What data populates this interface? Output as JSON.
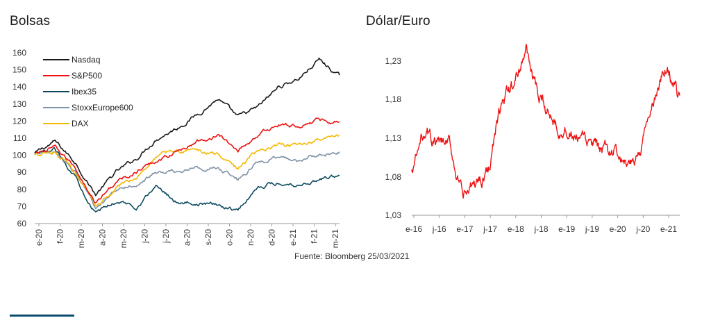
{
  "source": "Fuente: Bloomberg 25/03/2021",
  "chart_data": [
    {
      "type": "line",
      "title": "Bolsas",
      "ylim": [
        60,
        160
      ],
      "yticks": [
        "160",
        "150",
        "140",
        "130",
        "120",
        "110",
        "100",
        "90",
        "80",
        "70",
        "60"
      ],
      "xticks": [
        "e-20",
        "f-20",
        "m-20",
        "a-20",
        "m-20",
        "j-20",
        "j-20",
        "a-20",
        "s-20",
        "o-20",
        "n-20",
        "d-20",
        "e-21",
        "f-21",
        "m-21"
      ],
      "legend": [
        "Nasdaq",
        "S&P500",
        "Ibex35",
        "StoxxEurope600",
        "DAX"
      ],
      "legend_position": "top-left",
      "x": [
        "2020-01",
        "2020-02",
        "2020-03a",
        "2020-03b",
        "2020-04",
        "2020-05",
        "2020-06",
        "2020-07",
        "2020-08",
        "2020-09",
        "2020-10",
        "2020-11",
        "2020-12",
        "2021-01",
        "2021-02",
        "2021-03"
      ],
      "series": [
        {
          "name": "Nasdaq",
          "color": "#1a1a1a",
          "values": [
            101,
            108,
            96,
            77,
            90,
            98,
            110,
            116,
            124,
            133,
            122,
            128,
            140,
            145,
            156,
            146
          ]
        },
        {
          "name": "S&P500",
          "color": "#ee1111",
          "values": [
            101,
            104,
            93,
            72,
            84,
            90,
            97,
            102,
            108,
            112,
            103,
            112,
            118,
            117,
            121,
            120
          ]
        },
        {
          "name": "Ibex35",
          "color": "#0d4a5e",
          "values": [
            100,
            103,
            88,
            66,
            73,
            70,
            82,
            73,
            72,
            71,
            68,
            82,
            84,
            83,
            86,
            88
          ]
        },
        {
          "name": "StoxxEurope600",
          "color": "#7f92a5",
          "values": [
            100,
            103,
            90,
            68,
            80,
            84,
            90,
            90,
            93,
            92,
            86,
            96,
            98,
            97,
            100,
            102
          ]
        },
        {
          "name": "DAX",
          "color": "#f5b800",
          "values": [
            100,
            102,
            90,
            69,
            80,
            88,
            100,
            103,
            103,
            100,
            92,
            103,
            106,
            106,
            109,
            111
          ]
        }
      ]
    },
    {
      "type": "line",
      "title": "Dólar/Euro",
      "ylim": [
        1.03,
        1.255
      ],
      "yticks": [
        "1,23",
        "1,18",
        "1,13",
        "1,08",
        "1,03"
      ],
      "xticks": [
        "e-16",
        "j-16",
        "e-17",
        "j-17",
        "e-18",
        "j-18",
        "e-19",
        "j-19",
        "e-20",
        "j-20",
        "e-21"
      ],
      "x": [
        "e-16",
        "a-16",
        "j-16",
        "o-16",
        "e-17",
        "a-17",
        "j-17",
        "o-17",
        "e-18",
        "a-18",
        "j-18",
        "o-18",
        "e-19",
        "a-19",
        "j-19",
        "o-19",
        "e-20",
        "a-20",
        "j-20",
        "o-20",
        "e-21",
        "m-21"
      ],
      "series": [
        {
          "name": "",
          "color": "#ee1111",
          "values": [
            1.085,
            1.14,
            1.12,
            1.12,
            1.05,
            1.07,
            1.09,
            1.17,
            1.2,
            1.245,
            1.175,
            1.16,
            1.14,
            1.13,
            1.12,
            1.11,
            1.11,
            1.085,
            1.12,
            1.18,
            1.225,
            1.18
          ]
        }
      ]
    }
  ]
}
